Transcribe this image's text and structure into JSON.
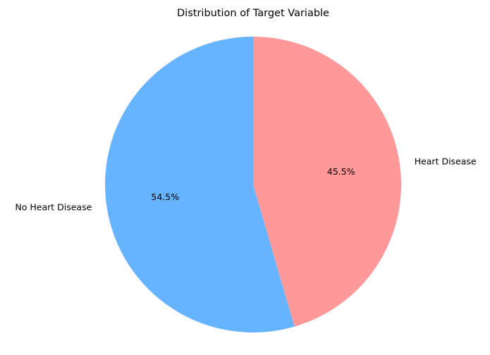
{
  "chart_data": {
    "type": "pie",
    "title": "Distribution of Target Variable",
    "startangle_deg": 90,
    "direction": "clockwise",
    "legend": "none",
    "slices": [
      {
        "label": "Heart Disease",
        "value": 45.5,
        "pct_label": "45.5%",
        "color": "#ff9999"
      },
      {
        "label": "No Heart Disease",
        "value": 54.5,
        "pct_label": "54.5%",
        "color": "#66b3ff"
      }
    ]
  }
}
